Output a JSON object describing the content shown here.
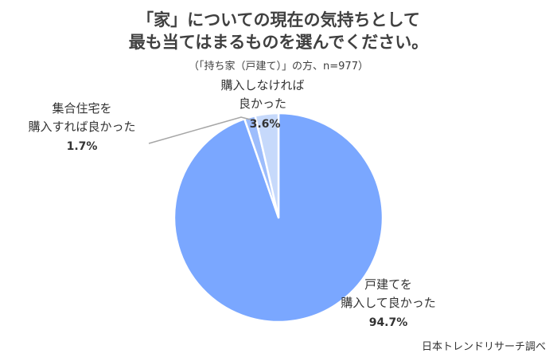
{
  "title_line1": "「家」についての現在の気持ちとして",
  "title_line2": "最も当てはまるものを選んでください。",
  "subtitle": "（「持ち家（戸建て）」の方、n=977）",
  "source": "日本トレンドリサーチ調べ",
  "chart_data": {
    "type": "pie",
    "slices": [
      {
        "label_lines": [
          "戸建てを",
          "購入して良かった"
        ],
        "value": 94.7,
        "value_label": "94.7%",
        "color": "#7aa7ff"
      },
      {
        "label_lines": [
          "集合住宅を",
          "購入すれば良かった"
        ],
        "value": 1.7,
        "value_label": "1.7%",
        "color": "#9dbdfc"
      },
      {
        "label_lines": [
          "購入しなければ",
          "良かった"
        ],
        "value": 3.6,
        "value_label": "3.6%",
        "color": "#c6d9fb"
      }
    ],
    "start_angle": "12 o'clock",
    "direction": "clockwise"
  }
}
